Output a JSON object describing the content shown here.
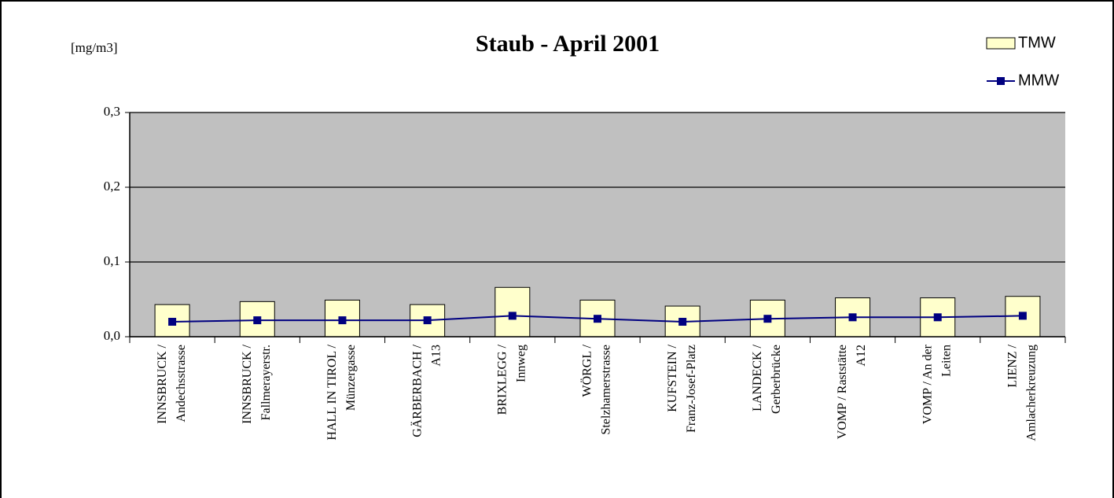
{
  "chart_data": {
    "type": "bar-line",
    "title": "Staub - April 2001",
    "y_label": "[mg/m3]",
    "categories": [
      [
        "INNSBRUCK /",
        "Andechsstrasse"
      ],
      [
        "INNSBRUCK /",
        "Fallmerayerstr."
      ],
      [
        "HALL IN TIROL /",
        "Münzergasse"
      ],
      [
        "GÄRBERBACH /",
        "A13"
      ],
      [
        "BRIXLEGG /",
        "Innweg"
      ],
      [
        "WÖRGL /",
        "Stelzhamerstrasse"
      ],
      [
        "KUFSTEIN /",
        "Franz-Josef-Platz"
      ],
      [
        "LANDECK /",
        "Gerberbrücke"
      ],
      [
        "VOMP / Raststätte",
        "A12"
      ],
      [
        "VOMP / An der",
        "Leiten"
      ],
      [
        "LIENZ /",
        "Amlacherkreuzung"
      ]
    ],
    "series": [
      {
        "name": "TMW",
        "type": "bar",
        "color": "#ffffcc",
        "values": [
          0.043,
          0.047,
          0.049,
          0.043,
          0.066,
          0.049,
          0.041,
          0.049,
          0.052,
          0.052,
          0.054
        ]
      },
      {
        "name": "MMW",
        "type": "line",
        "color": "#000080",
        "values": [
          0.02,
          0.022,
          0.022,
          0.022,
          0.028,
          0.024,
          0.02,
          0.024,
          0.026,
          0.026,
          0.028
        ]
      }
    ],
    "ylim": [
      0,
      0.3
    ],
    "yticks": [
      {
        "value": 0,
        "label": "0,0"
      },
      {
        "value": 0.1,
        "label": "0,1"
      },
      {
        "value": 0.2,
        "label": "0,2"
      },
      {
        "value": 0.3,
        "label": "0,3"
      }
    ],
    "grid": true,
    "plot_background": "#c0c0c0",
    "legend": "top-right"
  }
}
